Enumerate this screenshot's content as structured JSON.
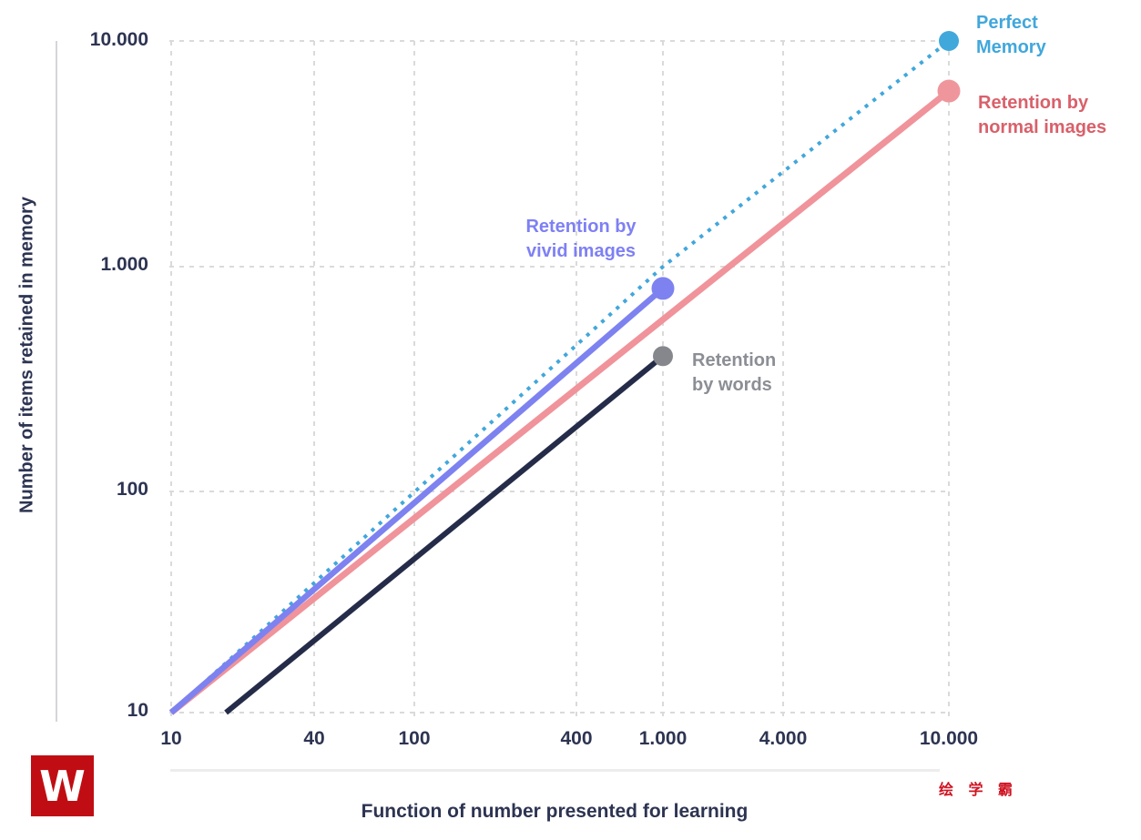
{
  "branding": {
    "logo_letter": "W",
    "logo_bg_color": "#c00d13",
    "watermark_text": "绘 学 霸",
    "watermark_color": "#cf1322"
  },
  "colors": {
    "axis_text": "#2d3452",
    "grid": "#dadada",
    "axis_line": "#d5d5db"
  },
  "chart_data": {
    "type": "line",
    "title": "",
    "xlabel": "Function of number presented for learning",
    "ylabel": "Number of items retained in memory",
    "x_scale": "log",
    "y_scale": "log",
    "grid": true,
    "xlim": [
      10,
      10000
    ],
    "ylim": [
      10,
      10000
    ],
    "x_ticks": {
      "values": [
        10,
        40,
        100,
        400,
        1000,
        4000,
        10000
      ],
      "labels": [
        "10",
        "40",
        "100",
        "400",
        "1.000",
        "4.000",
        "10.000"
      ]
    },
    "y_ticks": {
      "values": [
        10,
        100,
        1000,
        10000
      ],
      "labels": [
        "10",
        "100",
        "1.000",
        "10.000"
      ]
    },
    "series": [
      {
        "name": "Perfect Memory",
        "label_lines": [
          "Perfect",
          "Memory"
        ],
        "style": "dotted",
        "color": "#41a7dc",
        "dot_color": "#41a8db",
        "text_color": "#41a7dc",
        "points": [
          [
            10,
            10
          ],
          [
            1000,
            1000
          ],
          [
            10000,
            10000
          ]
        ],
        "end_dot": true
      },
      {
        "name": "Retention by normal images",
        "label_lines": [
          "Retention by",
          "normal images"
        ],
        "style": "solid",
        "color": "#f0939a",
        "dot_color": "#ef969c",
        "text_color": "#d9606a",
        "points": [
          [
            10,
            10
          ],
          [
            10000,
            6000
          ]
        ],
        "end_dot": true
      },
      {
        "name": "Retention by vivid images",
        "label_lines": [
          "Retention by",
          "vivid images"
        ],
        "style": "solid",
        "color": "#7d82f0",
        "dot_color": "#7d82f0",
        "text_color": "#7e80f4",
        "points": [
          [
            10,
            10
          ],
          [
            1000,
            800
          ]
        ],
        "end_dot": true
      },
      {
        "name": "Retention by words",
        "label_lines": [
          "Retention",
          "by words"
        ],
        "style": "solid",
        "color": "#252c49",
        "dot_color": "#85878d",
        "text_color": "#8b8e94",
        "points": [
          [
            17,
            10
          ],
          [
            1000,
            400
          ]
        ],
        "end_dot": true
      }
    ]
  }
}
